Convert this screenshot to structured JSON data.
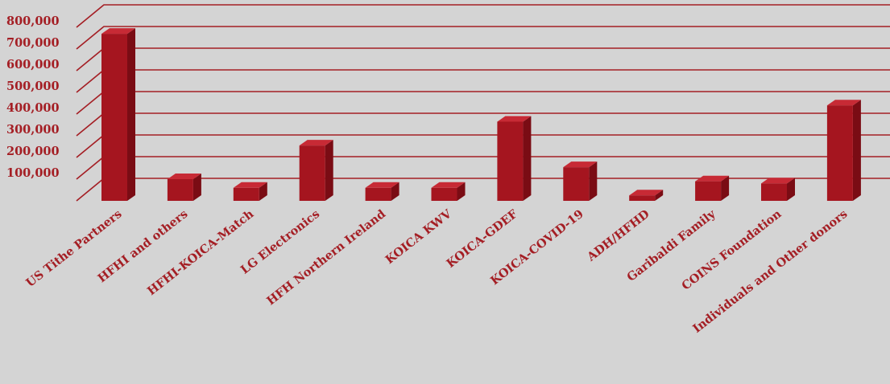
{
  "chart_data": {
    "type": "bar",
    "title": "",
    "xlabel": "",
    "ylabel": "",
    "categories": [
      "US Tithe Partners",
      "HFHI and others",
      "HFHI-KOICA-Match",
      "LG Electronics",
      "HFH Northern Ireland",
      "KOICA KWV",
      "KOICA-GDEF",
      "KOICA-COVID-19",
      "ADH/HFHD",
      "Garibaldi Family",
      "COINS Foundation",
      "Individuals and Other donors"
    ],
    "values": [
      770000,
      100000,
      60000,
      255000,
      60000,
      60000,
      365000,
      155000,
      25000,
      90000,
      80000,
      440000
    ],
    "ylim": [
      0,
      800000
    ],
    "y_ticks": [
      100000,
      200000,
      300000,
      400000,
      500000,
      600000,
      700000,
      800000
    ],
    "y_tick_labels": [
      "100,000",
      "200,000",
      "300,000",
      "400,000",
      "500,000",
      "600,000",
      "700,000",
      "800,000"
    ],
    "grid": true,
    "legend": "none",
    "colors": {
      "bar_front": "#a5151f",
      "bar_side": "#7a0c14",
      "bar_top": "#c72a35",
      "grid": "#a41e24",
      "text": "#a41e24",
      "background": "#d4d4d4"
    }
  }
}
